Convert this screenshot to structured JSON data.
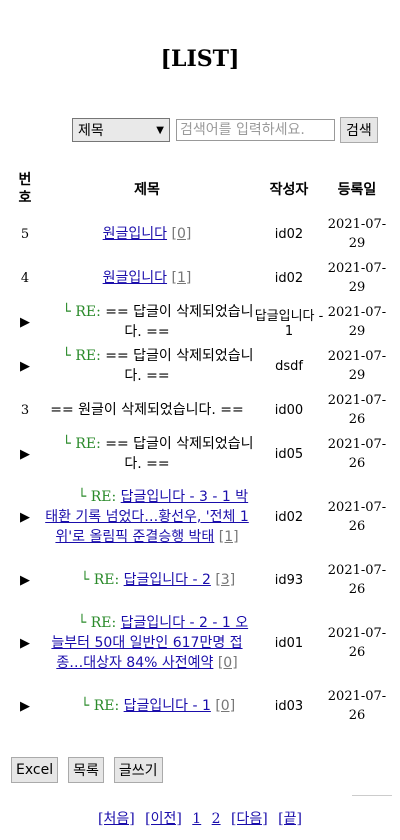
{
  "page_title": "[LIST]",
  "search": {
    "select_value": "제목",
    "placeholder": "검색어를 입력하세요.",
    "button": "검색"
  },
  "table": {
    "headers": {
      "no": "번호",
      "subject": "제목",
      "writer": "작성자",
      "date": "등록일"
    },
    "rows": [
      {
        "no": "5",
        "indent": 0,
        "re": "",
        "title": "원글입니다",
        "count": "[0]",
        "writer": "id02",
        "date": "2021-07-29"
      },
      {
        "no": "4",
        "indent": 0,
        "re": "",
        "title": "원글입니다",
        "count": "[1]",
        "writer": "id02",
        "date": "2021-07-29"
      },
      {
        "no": "▶",
        "indent": 1,
        "re": "└ RE:",
        "title": "== 답글이 삭제되었습니다. ==",
        "count": "",
        "writer": "답글입니다 - 1",
        "date": "2021-07-29",
        "deleted": true
      },
      {
        "no": "▶",
        "indent": 1,
        "re": "└ RE:",
        "title": "== 답글이 삭제되었습니다. ==",
        "count": "",
        "writer": "dsdf",
        "date": "2021-07-29",
        "deleted": true
      },
      {
        "no": "3",
        "indent": 0,
        "re": "",
        "title": "== 원글이 삭제되었습니다. ==",
        "count": "",
        "writer": "id00",
        "date": "2021-07-26",
        "deleted": true
      },
      {
        "no": "▶",
        "indent": 1,
        "re": "└ RE:",
        "title": "== 답글이 삭제되었습니다. ==",
        "count": "",
        "writer": "id05",
        "date": "2021-07-26",
        "deleted": true
      },
      {
        "no": "▶",
        "indent": 2,
        "re": "└ RE:",
        "title": "답글입니다 - 3 - 1 박태환 기록 넘었다…황선우, '전체 1위'로 올림픽 준결승행 박태",
        "count": "[1]",
        "writer": "id02",
        "date": "2021-07-26"
      },
      {
        "no": "▶",
        "indent": 1,
        "re": "└ RE:",
        "title": "답글입니다 - 2",
        "count": "[3]",
        "writer": "id93",
        "date": "2021-07-26"
      },
      {
        "no": "▶",
        "indent": 2,
        "re": "└ RE:",
        "title": "답글입니다 - 2 - 1 오늘부터 50대 일반인 617만명 접종…대상자 84% 사전예약",
        "count": "[0]",
        "writer": "id01",
        "date": "2021-07-26"
      },
      {
        "no": "▶",
        "indent": 1,
        "re": "└ RE:",
        "title": "답글입니다 - 1",
        "count": "[0]",
        "writer": "id03",
        "date": "2021-07-26"
      }
    ]
  },
  "buttons": {
    "excel": "Excel",
    "list": "목록",
    "write": "글쓰기"
  },
  "pager": {
    "first": "[처음]",
    "prev": "[이전]",
    "pages": [
      "1",
      "2"
    ],
    "next": "[다음]",
    "last": "[끝]"
  }
}
